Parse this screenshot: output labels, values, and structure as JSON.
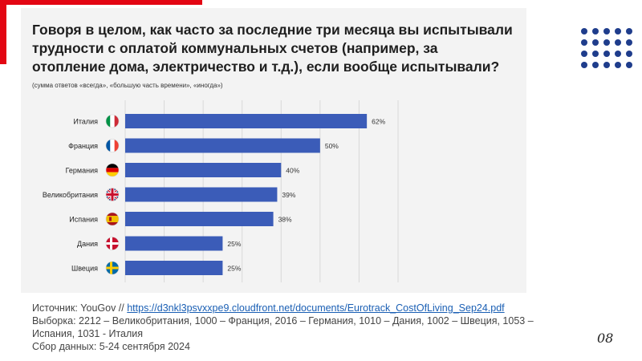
{
  "slide": {
    "title": "Говоря в целом, как часто за последние три месяца вы испытывали трудности с оплатой коммунальных счетов (например, за отопление дома, электричество и т.д.), если вообще испытывали?",
    "subtitle": "(сумма ответов «всегда», «большую часть времени», «иногда»)",
    "page_number": "08",
    "accent_color": "#e30613",
    "dots_color": "#1f3d8c"
  },
  "footer": {
    "source_prefix": "Источник: YouGov // ",
    "source_link": "https://d3nkl3psvxxpe9.cloudfront.net/documents/Eurotrack_CostOfLiving_Sep24.pdf",
    "sample": "Выборка: 2212 – Великобритания, 1000 – Франция, 2016 – Германия, 1010 – Дания, 1002 – Швеция, 1053 – Испания, 1031 - Италия",
    "collection": "Сбор данных: 5-24 сентября 2024"
  },
  "chart_data": {
    "type": "bar",
    "orientation": "horizontal",
    "categories": [
      "Италия",
      "Франция",
      "Германия",
      "Великобритания",
      "Испания",
      "Дания",
      "Швеция"
    ],
    "values": [
      62,
      50,
      40,
      39,
      38,
      25,
      25
    ],
    "value_labels": [
      "62%",
      "50%",
      "40%",
      "39%",
      "38%",
      "25%",
      "25%"
    ],
    "flags": [
      "italy-flag-icon",
      "france-flag-icon",
      "germany-flag-icon",
      "uk-flag-icon",
      "spain-flag-icon",
      "denmark-flag-icon",
      "sweden-flag-icon"
    ],
    "xlim": [
      0,
      70
    ],
    "grid": true,
    "bar_color": "#3b5cb8"
  }
}
